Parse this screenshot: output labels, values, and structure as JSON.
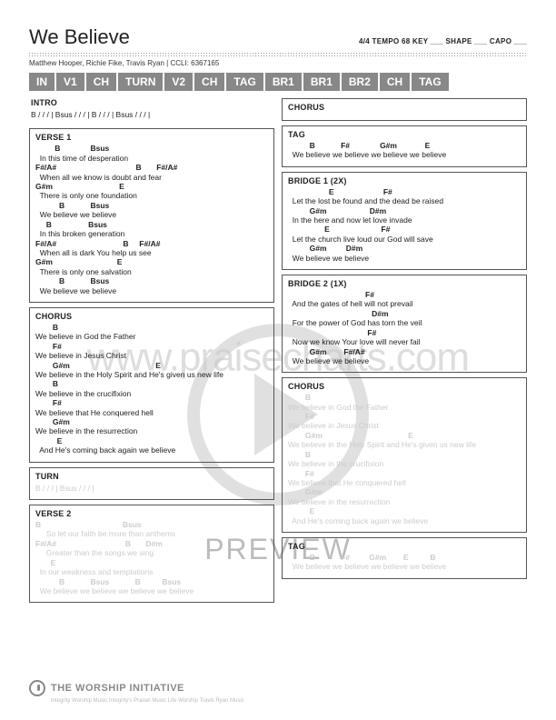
{
  "title": "We Believe",
  "meta": "4/4   TEMPO 68   KEY ___  SHAPE ___  CAPO ___",
  "credits": "Matthew Hooper, Richie Fike, Travis Ryan  |  CCLI: 6367165",
  "sections": [
    "IN",
    "V1",
    "CH",
    "TURN",
    "V2",
    "CH",
    "TAG",
    "BR1",
    "BR1",
    "BR2",
    "CH",
    "TAG"
  ],
  "watermark": "www.praisecharts.com",
  "preview": "PREVIEW",
  "footer_title": "THE WORSHIP INITIATIVE",
  "footer_sub": "Integrity Worship Music Integrity's Praise! Music Life Worship Travis Ryan Music",
  "left": [
    {
      "head": "INTRO",
      "boxed": false,
      "faded": false,
      "lines": [
        [
          "",
          "B / / / | Bsus / / / | B / / / | Bsus / / / |"
        ]
      ]
    },
    {
      "head": "VERSE 1",
      "boxed": true,
      "faded": false,
      "lines": [
        [
          "         B              Bsus",
          ""
        ],
        [
          "",
          "  In this time of desperation"
        ],
        [
          "F#/A#                                     B       F#/A#",
          ""
        ],
        [
          "",
          "  When all we know is doubt and fear"
        ],
        [
          "G#m                               E",
          ""
        ],
        [
          "",
          "  There is only one foundation"
        ],
        [
          "           B            Bsus",
          ""
        ],
        [
          "",
          "  We believe we believe"
        ],
        [
          "     B                 Bsus",
          ""
        ],
        [
          "",
          "  In this broken generation"
        ],
        [
          "F#/A#                               B     F#/A#",
          ""
        ],
        [
          "",
          "  When all is dark You help us see"
        ],
        [
          "G#m                              E",
          ""
        ],
        [
          "",
          "  There is only one salvation"
        ],
        [
          "           B            Bsus",
          ""
        ],
        [
          "",
          "  We believe we believe"
        ]
      ]
    },
    {
      "head": "CHORUS",
      "boxed": true,
      "faded": false,
      "lines": [
        [
          "        B",
          ""
        ],
        [
          "",
          "We believe in God the Father"
        ],
        [
          "        F#",
          ""
        ],
        [
          "",
          "We believe in Jesus Christ"
        ],
        [
          "        G#m                                        E",
          ""
        ],
        [
          "",
          "We believe in the Holy Spirit and He's given us new life"
        ],
        [
          "        B",
          ""
        ],
        [
          "",
          "We believe in the crucifixion"
        ],
        [
          "        F#",
          ""
        ],
        [
          "",
          "We believe that He conquered hell"
        ],
        [
          "        G#m",
          ""
        ],
        [
          "",
          "We believe in the resurrection"
        ],
        [
          "          E",
          ""
        ],
        [
          "",
          "  And He's coming back again we believe"
        ]
      ]
    },
    {
      "head": "TURN",
      "boxed": true,
      "faded": true,
      "lines": [
        [
          "",
          "B / / / | Bsus / / / |"
        ]
      ]
    },
    {
      "head": "VERSE 2",
      "boxed": true,
      "faded": true,
      "lines": [
        [
          "B                                      Bsus",
          ""
        ],
        [
          "",
          "     So let our faith be more than anthems"
        ],
        [
          "F#/A#                                B       D#m",
          ""
        ],
        [
          "",
          "     Greater than the songs we sing"
        ],
        [
          "       E",
          ""
        ],
        [
          "",
          "  In our weakness and temptations"
        ],
        [
          "           B            Bsus            B          Bsus",
          ""
        ],
        [
          "",
          "  We believe we believe we believe we believe"
        ]
      ]
    }
  ],
  "right": [
    {
      "head": "CHORUS",
      "boxed": true,
      "faded": false,
      "lines": [
        [
          "",
          ""
        ]
      ]
    },
    {
      "head": "TAG",
      "boxed": true,
      "faded": false,
      "lines": [
        [
          "          B            F#              G#m             E",
          ""
        ],
        [
          "",
          "  We believe we believe we believe we believe"
        ]
      ]
    },
    {
      "head": "BRIDGE 1 (2X)",
      "boxed": true,
      "faded": false,
      "lines": [
        [
          "                   E                       F#",
          ""
        ],
        [
          "",
          "  Let the lost be found and the dead be raised"
        ],
        [
          "          G#m                    D#m",
          ""
        ],
        [
          "",
          "  In the here and now let love invade"
        ],
        [
          "                 E                        F#",
          ""
        ],
        [
          "",
          "  Let the church live loud our God will save"
        ],
        [
          "          G#m         D#m",
          ""
        ],
        [
          "",
          "  We believe we believe"
        ]
      ]
    },
    {
      "head": "BRIDGE 2 (1X)",
      "boxed": true,
      "faded": false,
      "lines": [
        [
          "                                    F#",
          ""
        ],
        [
          "",
          "  And the gates of hell will not prevail"
        ],
        [
          "                                       D#m",
          ""
        ],
        [
          "",
          "  For the power of God has torn the veil"
        ],
        [
          "                                     F#",
          ""
        ],
        [
          "",
          "  Now we know Your love will never fail"
        ],
        [
          "          G#m        F#/A#",
          ""
        ],
        [
          "",
          "  We believe we believe"
        ]
      ]
    },
    {
      "head": "CHORUS",
      "boxed": true,
      "faded": true,
      "lines": [
        [
          "        B",
          ""
        ],
        [
          "",
          "We believe in God the Father"
        ],
        [
          "        F#",
          ""
        ],
        [
          "",
          "We believe in Jesus Christ"
        ],
        [
          "        G#m                                        E",
          ""
        ],
        [
          "",
          "We believe in the Holy Spirit and He's given us new life"
        ],
        [
          "        B",
          ""
        ],
        [
          "",
          "We believe in the crucifixion"
        ],
        [
          "        F#",
          ""
        ],
        [
          "",
          "We believe that He conquered hell"
        ],
        [
          "        G#m",
          ""
        ],
        [
          "",
          "We believe in the resurrection"
        ],
        [
          "          E",
          ""
        ],
        [
          "",
          "  And He's coming back again we believe"
        ]
      ]
    },
    {
      "head": "TAG",
      "boxed": true,
      "faded": true,
      "lines": [
        [
          "          B            F#         G#m        E          B",
          ""
        ],
        [
          "",
          "  We believe we believe we believe we believe"
        ]
      ]
    }
  ]
}
